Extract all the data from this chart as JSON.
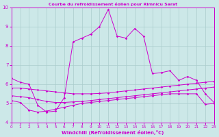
{
  "title": "Courbe du refroidissement éolien pour Rimnicu Sarat",
  "xlabel": "Windchill (Refroidissement éolien,°C)",
  "background_color": "#cce8e8",
  "grid_color": "#aacccc",
  "line_color": "#cc00cc",
  "xlim": [
    0,
    23
  ],
  "ylim": [
    4,
    10
  ],
  "xticks": [
    0,
    1,
    2,
    3,
    4,
    5,
    6,
    7,
    8,
    9,
    10,
    11,
    12,
    13,
    14,
    15,
    16,
    17,
    18,
    19,
    20,
    21,
    22,
    23
  ],
  "yticks": [
    4,
    5,
    6,
    7,
    8,
    9,
    10
  ],
  "line1_x": [
    0,
    1,
    2,
    3,
    4,
    5,
    6,
    7,
    8,
    9,
    10,
    11,
    12,
    13,
    14,
    15,
    16,
    17,
    18,
    19,
    20,
    21,
    22,
    23
  ],
  "line1_y": [
    6.3,
    6.1,
    6.0,
    4.9,
    4.55,
    4.6,
    5.3,
    8.2,
    8.4,
    8.6,
    9.0,
    9.9,
    8.5,
    8.4,
    8.9,
    8.5,
    6.55,
    6.6,
    6.7,
    6.2,
    6.4,
    6.2,
    5.5,
    5.05
  ],
  "line2_x": [
    0,
    1,
    2,
    3,
    4,
    5,
    6,
    7,
    8,
    9,
    10,
    11,
    12,
    13,
    14,
    15,
    16,
    17,
    18,
    19,
    20,
    21,
    22,
    23
  ],
  "line2_y": [
    5.8,
    5.8,
    5.75,
    5.7,
    5.65,
    5.6,
    5.55,
    5.5,
    5.5,
    5.5,
    5.52,
    5.55,
    5.6,
    5.65,
    5.7,
    5.75,
    5.8,
    5.85,
    5.9,
    5.95,
    6.0,
    6.05,
    6.1,
    6.15
  ],
  "line3_x": [
    0,
    1,
    2,
    3,
    4,
    5,
    6,
    7,
    8,
    9,
    10,
    11,
    12,
    13,
    14,
    15,
    16,
    17,
    18,
    19,
    20,
    21,
    22,
    23
  ],
  "line3_y": [
    5.4,
    5.35,
    5.3,
    5.2,
    5.1,
    5.05,
    5.05,
    5.08,
    5.1,
    5.15,
    5.2,
    5.25,
    5.3,
    5.35,
    5.4,
    5.45,
    5.5,
    5.55,
    5.6,
    5.65,
    5.7,
    5.75,
    5.8,
    5.85
  ],
  "line4_x": [
    0,
    1,
    2,
    3,
    4,
    5,
    6,
    7,
    8,
    9,
    10,
    11,
    12,
    13,
    14,
    15,
    16,
    17,
    18,
    19,
    20,
    21,
    22,
    23
  ],
  "line4_y": [
    5.15,
    5.05,
    4.65,
    4.55,
    4.6,
    4.7,
    4.8,
    4.9,
    5.0,
    5.05,
    5.1,
    5.15,
    5.2,
    5.25,
    5.3,
    5.35,
    5.4,
    5.45,
    5.5,
    5.5,
    5.5,
    5.5,
    4.95,
    5.0
  ]
}
